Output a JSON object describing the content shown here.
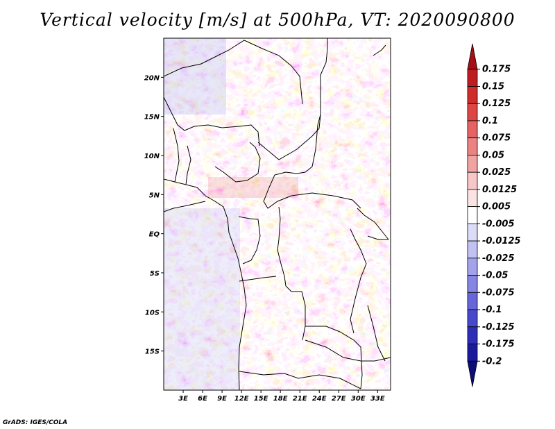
{
  "title": "Vertical velocity [m/s] at 500hPa, VT: 2020090800",
  "credit": "GrADS: IGES/COLA",
  "map": {
    "lat_labels": [
      "20N",
      "15N",
      "10N",
      "5N",
      "EQ",
      "5S",
      "10S",
      "15S"
    ],
    "lat_values": [
      20,
      15,
      10,
      5,
      0,
      -5,
      -10,
      -15
    ],
    "lon_labels": [
      "3E",
      "6E",
      "9E",
      "12E",
      "15E",
      "18E",
      "21E",
      "24E",
      "27E",
      "30E",
      "33E"
    ],
    "lon_values": [
      3,
      6,
      9,
      12,
      15,
      18,
      21,
      24,
      27,
      30,
      33
    ],
    "lon_range": [
      0,
      35
    ],
    "lat_range": [
      -20,
      25
    ]
  },
  "colorbar": {
    "labels": [
      "0.175",
      "0.15",
      "0.125",
      "0.1",
      "0.075",
      "0.05",
      "0.025",
      "0.0125",
      "0.005",
      "-0.005",
      "-0.0125",
      "-0.025",
      "-0.05",
      "-0.075",
      "-0.1",
      "-0.125",
      "-0.175",
      "-0.2"
    ],
    "colors": [
      "#a50f15",
      "#bd1d21",
      "#d12c2c",
      "#de4646",
      "#e56363",
      "#eb8383",
      "#f1a3a3",
      "#f7c6c6",
      "#fbe3e3",
      "#ffffff",
      "#dcdcf8",
      "#c2c2f2",
      "#a3a3eb",
      "#8585e3",
      "#6666d9",
      "#4848cc",
      "#2d2db8",
      "#1a1a9c",
      "#0d0d78"
    ]
  }
}
